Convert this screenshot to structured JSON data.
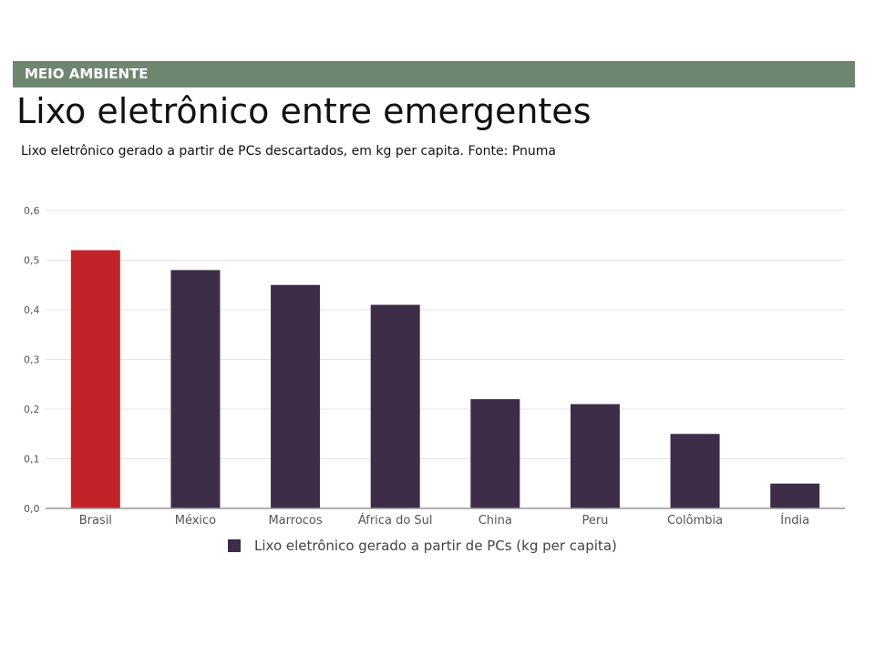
{
  "header": {
    "section": "MEIO AMBIENTE",
    "title": "Lixo eletrônico entre emergentes",
    "subtitle": "Lixo eletrônico gerado a partir de PCs descartados, em kg per capita. Fonte: Pnuma"
  },
  "colors": {
    "section_bar": "#6f8670",
    "highlight_bar": "#c02428",
    "default_bar": "#3d2d48",
    "grid": "#e4e4e4",
    "axis": "#999999"
  },
  "chart_data": {
    "type": "bar",
    "categories": [
      "Brasil",
      "México",
      "Marrocos",
      "África do Sul",
      "China",
      "Peru",
      "Colômbia",
      "Índia"
    ],
    "series": [
      {
        "name": "Lixo eletrônico gerado a partir de PCs (kg per capita)",
        "values": [
          0.52,
          0.48,
          0.45,
          0.41,
          0.22,
          0.21,
          0.15,
          0.05
        ]
      }
    ],
    "highlighted_category": "Brasil",
    "yticks": [
      "0,0",
      "0,1",
      "0,2",
      "0,3",
      "0,4",
      "0,5",
      "0,6"
    ],
    "ylim": [
      0,
      0.6
    ],
    "grid": true,
    "legend": "bottom"
  }
}
